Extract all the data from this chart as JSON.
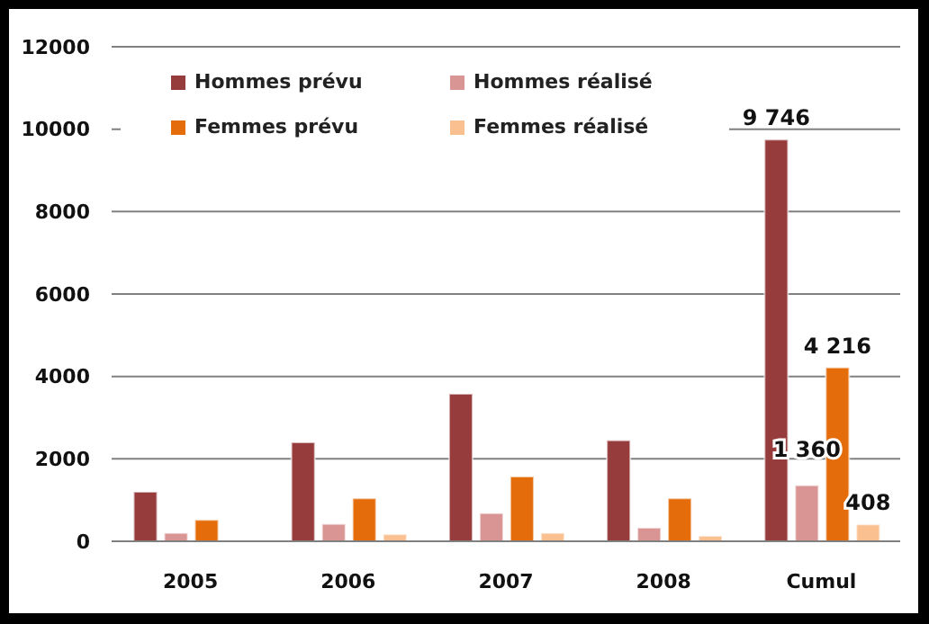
{
  "chart_data": {
    "type": "bar",
    "categories": [
      "2005",
      "2006",
      "2007",
      "2008",
      "Cumul"
    ],
    "series": [
      {
        "name": "Hommes prévu",
        "color": "#963c3c",
        "values": [
          1200,
          2400,
          3580,
          2450,
          9746
        ],
        "value_labels": [
          null,
          null,
          null,
          null,
          "9 746"
        ]
      },
      {
        "name": "Hommes réalisé",
        "color": "#d99594",
        "values": [
          200,
          420,
          680,
          330,
          1360
        ],
        "value_labels": [
          null,
          null,
          null,
          null,
          "1 360"
        ]
      },
      {
        "name": "Femmes prévu",
        "color": "#e46c0a",
        "values": [
          520,
          1040,
          1570,
          1040,
          4216
        ],
        "value_labels": [
          null,
          null,
          null,
          null,
          "4 216"
        ]
      },
      {
        "name": "Femmes réalisé",
        "color": "#fac08f",
        "values": [
          null,
          170,
          200,
          130,
          408
        ],
        "value_labels": [
          null,
          null,
          null,
          null,
          "408"
        ]
      }
    ],
    "ylim": [
      0,
      12000
    ],
    "yticks": [
      0,
      2000,
      4000,
      6000,
      8000,
      10000,
      12000
    ],
    "grid": "y",
    "legend": "top"
  }
}
